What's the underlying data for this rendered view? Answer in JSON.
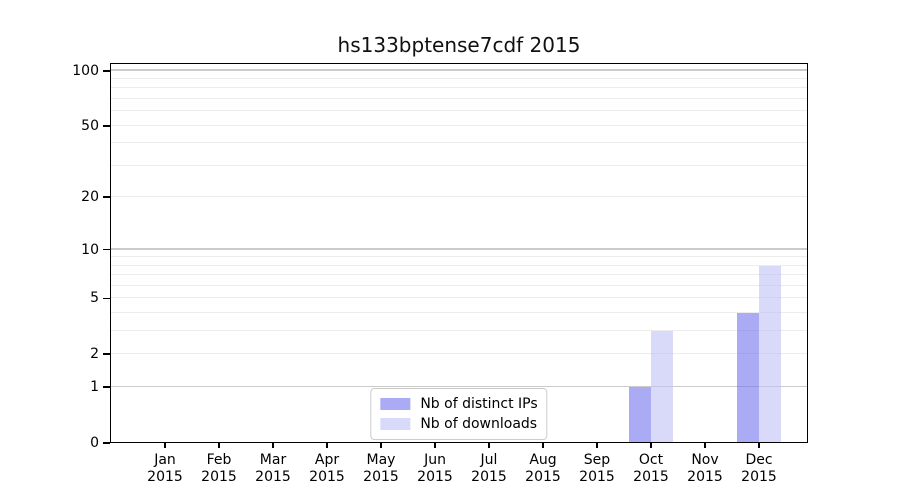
{
  "chart_data": {
    "type": "bar",
    "title": "hs133bptense7cdf 2015",
    "categories": [
      "Jan",
      "Feb",
      "Mar",
      "Apr",
      "May",
      "Jun",
      "Jul",
      "Aug",
      "Sep",
      "Oct",
      "Nov",
      "Dec"
    ],
    "year_label": "2015",
    "series": [
      {
        "name": "Nb of distinct IPs",
        "color": "rgba(113,113,238,0.6)",
        "values": [
          0,
          0,
          0,
          0,
          0,
          0,
          0,
          0,
          0,
          1,
          0,
          4
        ]
      },
      {
        "name": "Nb of downloads",
        "color": "rgba(192,192,245,0.6)",
        "values": [
          0,
          0,
          0,
          0,
          0,
          0,
          0,
          0,
          0,
          3,
          0,
          8
        ]
      }
    ],
    "yscale": "log1p",
    "ylim": [
      0,
      110
    ],
    "yticks": [
      0,
      1,
      2,
      5,
      10,
      20,
      50,
      100
    ],
    "major_gridlines": [
      1,
      10,
      100
    ],
    "minor_gridlines": [
      2,
      3,
      4,
      5,
      6,
      7,
      8,
      9,
      20,
      30,
      40,
      50,
      60,
      70,
      80,
      90
    ],
    "grid": true,
    "legend_position": "lower center"
  },
  "colors": {
    "background": "#ffffff",
    "axis": "#000000",
    "major_grid": "#cbcbcb",
    "minor_grid": "#ececec",
    "legend_border": "#cccccc",
    "bar_distinct_ips": "rgba(113,113,238,0.6)",
    "bar_downloads": "rgba(192,192,245,0.6)"
  }
}
